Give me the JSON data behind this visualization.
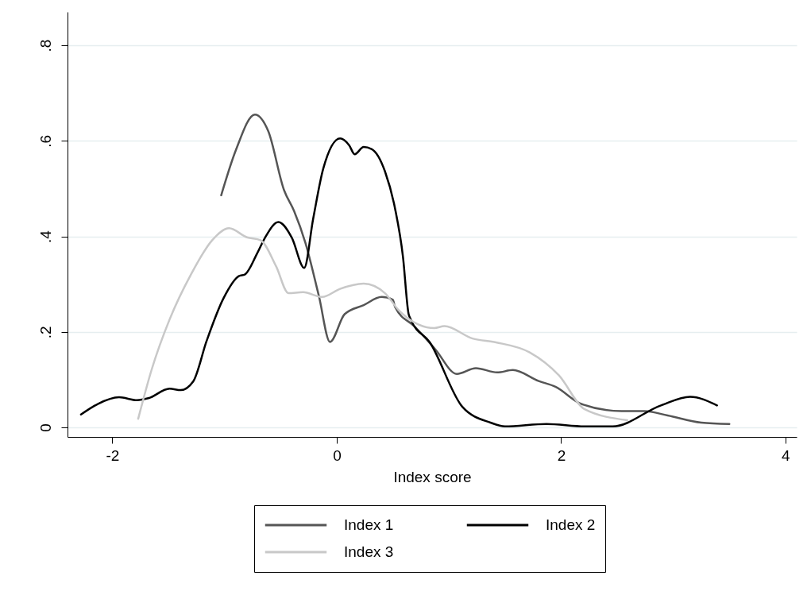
{
  "chart_data": {
    "type": "line",
    "xlabel": "Index score",
    "xlim": [
      -2.4,
      4.1
    ],
    "xticks": [
      -2,
      0,
      2,
      4
    ],
    "ylim": [
      -0.02,
      0.87
    ],
    "yticks": [
      0,
      {
        "value": 0.2,
        "label": ".2"
      },
      {
        "value": 0.4,
        "label": ".4"
      },
      {
        "value": 0.6,
        "label": ".6"
      },
      {
        "value": 0.8,
        "label": ".8"
      }
    ],
    "grid": "y",
    "legend": "bottom",
    "marker": "none",
    "line_style": "solid",
    "series": [
      {
        "name": "Index 1",
        "color": "#555555",
        "x": [
          -1.03,
          -0.9,
          -0.73,
          -0.61,
          -0.47,
          -0.38,
          -0.28,
          -0.16,
          -0.06,
          0.07,
          0.24,
          0.4,
          0.5,
          0.52,
          0.7,
          0.88,
          1.07,
          1.24,
          1.43,
          1.57,
          1.8,
          1.95,
          2.18,
          2.54,
          2.74,
          2.95,
          3.25,
          3.5
        ],
        "values": [
          0.486,
          0.58,
          0.655,
          0.62,
          0.497,
          0.453,
          0.387,
          0.276,
          0.179,
          0.237,
          0.256,
          0.273,
          0.267,
          0.252,
          0.21,
          0.163,
          0.112,
          0.124,
          0.115,
          0.12,
          0.097,
          0.085,
          0.049,
          0.034,
          0.034,
          0.025,
          0.01,
          0.007
        ]
      },
      {
        "name": "Index 2",
        "color": "#000000",
        "x": [
          -2.28,
          -2.13,
          -1.94,
          -1.78,
          -1.68,
          -1.49,
          -1.39,
          -1.28,
          -1.16,
          -1.01,
          -0.87,
          -0.82,
          -0.71,
          -0.64,
          -0.52,
          -0.4,
          -0.29,
          -0.21,
          -0.12,
          0.03,
          0.11,
          0.16,
          0.24,
          0.31,
          0.43,
          0.52,
          0.59,
          0.64,
          0.66,
          0.83,
          1.12,
          1.37,
          1.5,
          1.87,
          2.21,
          2.46,
          2.89,
          3.15,
          3.39
        ],
        "values": [
          0.027,
          0.049,
          0.063,
          0.057,
          0.061,
          0.081,
          0.078,
          0.096,
          0.181,
          0.27,
          0.317,
          0.32,
          0.364,
          0.397,
          0.43,
          0.397,
          0.334,
          0.437,
          0.542,
          0.605,
          0.591,
          0.572,
          0.587,
          0.583,
          0.536,
          0.458,
          0.358,
          0.238,
          0.226,
          0.178,
          0.043,
          0.01,
          0.002,
          0.007,
          0.002,
          0.002,
          0.046,
          0.064,
          0.046
        ]
      },
      {
        "name": "Index 3",
        "color": "#c8c8c8",
        "x": [
          -1.77,
          -1.65,
          -1.49,
          -1.3,
          -1.11,
          -0.96,
          -0.8,
          -0.68,
          -0.54,
          -0.43,
          -0.3,
          -0.13,
          0.03,
          0.24,
          0.43,
          0.55,
          0.87,
          0.96,
          1.21,
          1.42,
          1.72,
          1.98,
          2.21,
          2.59
        ],
        "values": [
          0.018,
          0.121,
          0.226,
          0.32,
          0.392,
          0.417,
          0.398,
          0.392,
          0.337,
          0.281,
          0.283,
          0.273,
          0.29,
          0.301,
          0.281,
          0.246,
          0.208,
          0.212,
          0.186,
          0.178,
          0.157,
          0.109,
          0.038,
          0.015
        ]
      }
    ]
  }
}
